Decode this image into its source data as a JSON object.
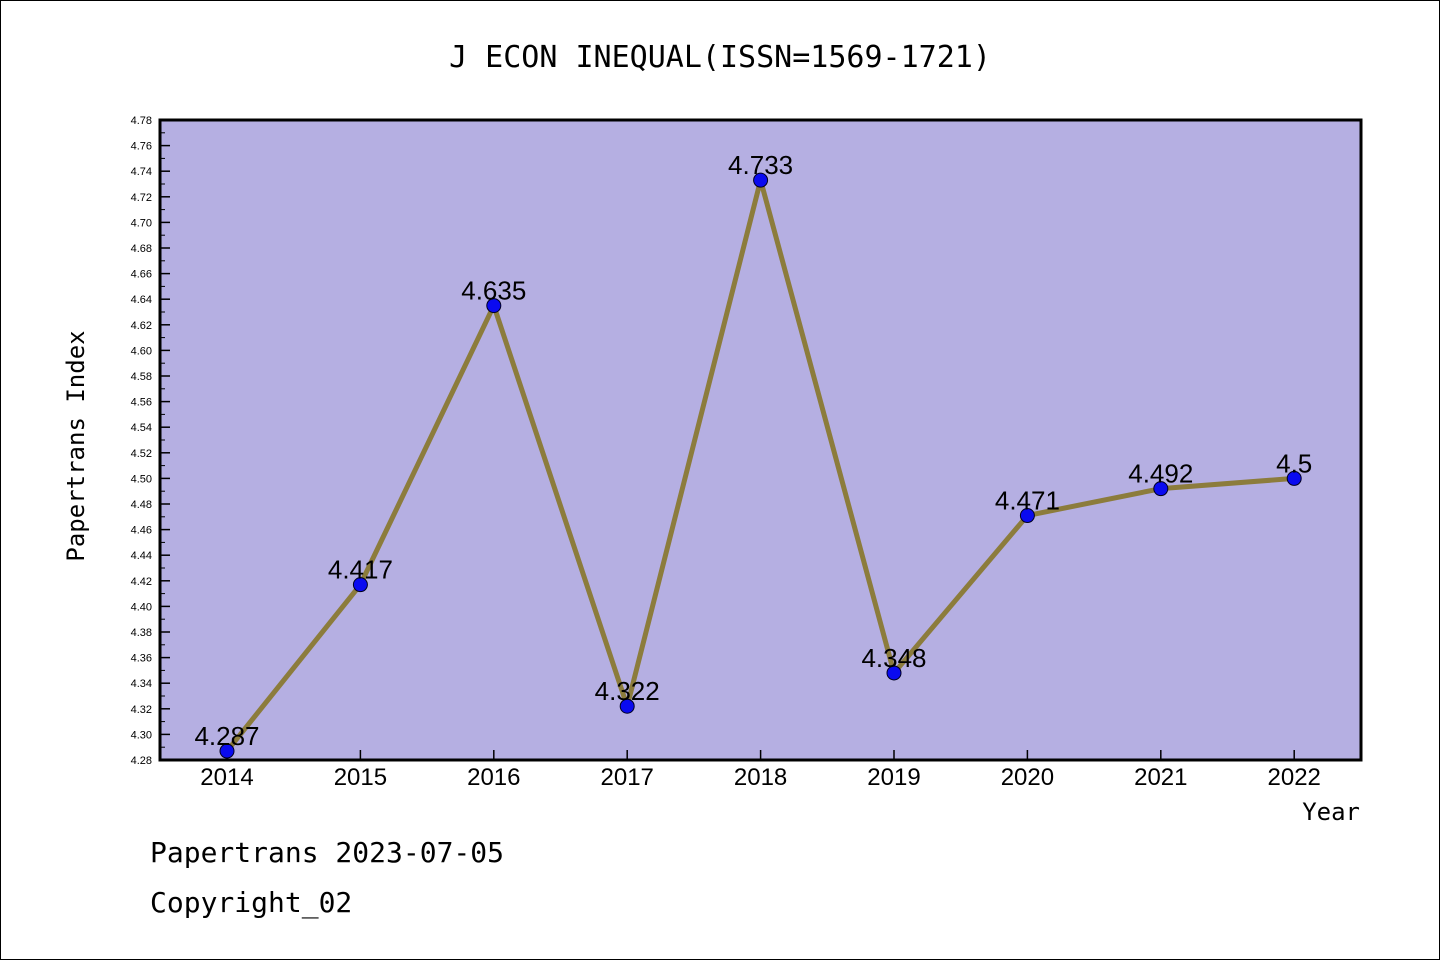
{
  "chart_data": {
    "type": "line",
    "title": "J ECON INEQUAL(ISSN=1569-1721)",
    "xlabel": "Year",
    "ylabel": "Papertrans Index",
    "categories": [
      "2014",
      "2015",
      "2016",
      "2017",
      "2018",
      "2019",
      "2020",
      "2021",
      "2022"
    ],
    "series": [
      {
        "values": [
          4.287,
          4.417,
          4.635,
          4.322,
          4.733,
          4.348,
          4.471,
          4.492,
          4.5
        ],
        "labels": [
          "4.287",
          "4.417",
          "4.635",
          "4.322",
          "4.733",
          "4.348",
          "4.471",
          "4.492",
          "4.5"
        ]
      }
    ],
    "ylim": [
      4.28,
      4.78
    ],
    "yticks": [
      "4.28",
      "4.30",
      "4.32",
      "4.34",
      "4.36",
      "4.38",
      "4.40",
      "4.42",
      "4.44",
      "4.46",
      "4.48",
      "4.50",
      "4.52",
      "4.54",
      "4.56",
      "4.58",
      "4.60",
      "4.62",
      "4.64",
      "4.66",
      "4.68",
      "4.70",
      "4.72",
      "4.74",
      "4.76",
      "4.78"
    ],
    "grid": false,
    "legend": "none",
    "colors": {
      "plot_background": "#b5afe2",
      "line": "#8c7c3c",
      "marker": "#0a0af0"
    }
  },
  "footer": {
    "source": "Papertrans 2023-07-05",
    "copyright": "Copyright_02"
  }
}
